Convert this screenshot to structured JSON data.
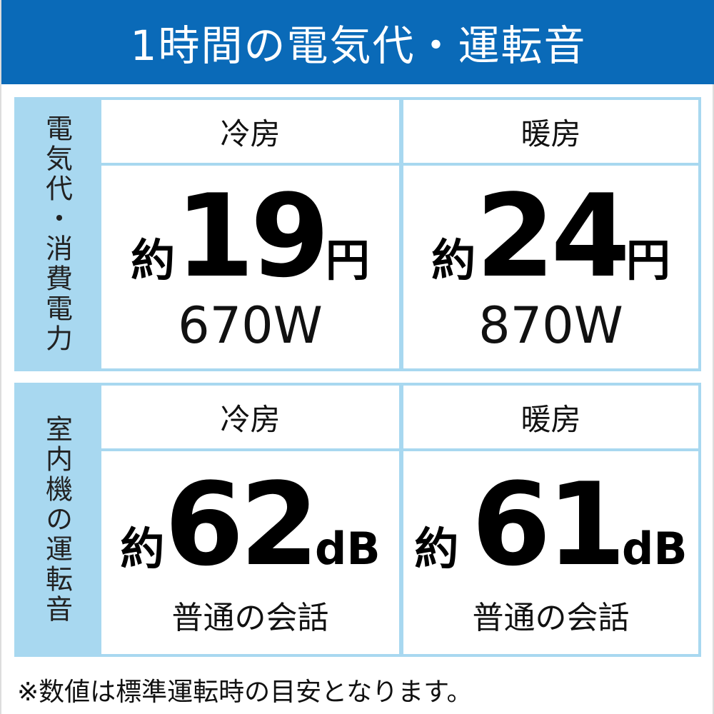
{
  "title": "1時間の電気代・運転音",
  "colors": {
    "header_bg": "#0a6ab8",
    "table_accent": "#a8d8f0"
  },
  "electricity": {
    "side_label": "電気代・消費電力",
    "cooling": {
      "label": "冷房",
      "prefix": "約",
      "value": "19",
      "unit": "円",
      "power": "670W"
    },
    "heating": {
      "label": "暖房",
      "prefix": "約",
      "value": "24",
      "unit": "円",
      "power": "870W"
    }
  },
  "noise": {
    "side_label": "室内機の運転音",
    "cooling": {
      "label": "冷房",
      "prefix": "約",
      "value": "62",
      "unit": "dB",
      "note": "普通の会話"
    },
    "heating": {
      "label": "暖房",
      "prefix": "約",
      "value": "61",
      "unit": "dB",
      "note": "普通の会話"
    }
  },
  "footnote": "※数値は標準運転時の目安となります。"
}
